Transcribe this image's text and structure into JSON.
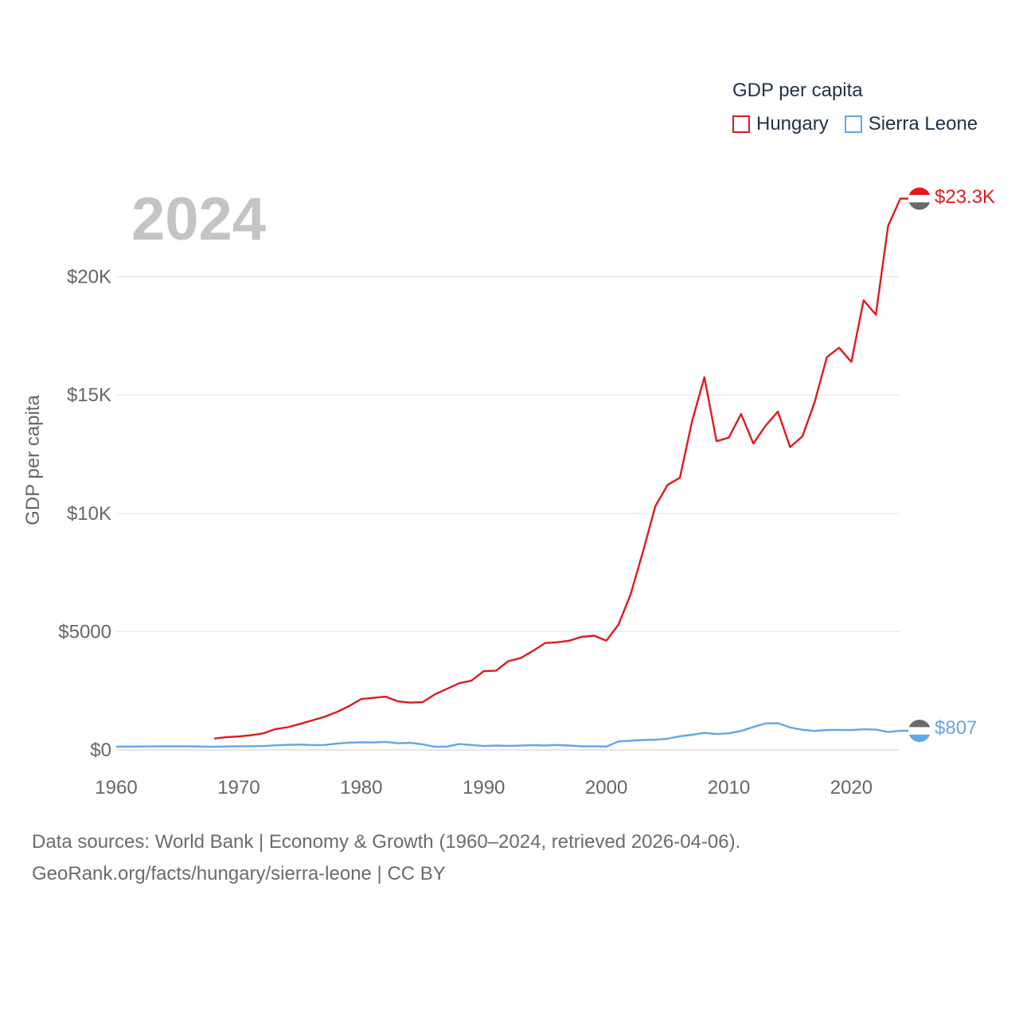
{
  "chart_data": {
    "type": "line",
    "title": "GDP per capita",
    "ylabel": "GDP per capita",
    "xlabel": "",
    "year_label": "2024",
    "x_ticks": [
      "1960",
      "1970",
      "1980",
      "1990",
      "2000",
      "2010",
      "2020"
    ],
    "y_ticks": [
      {
        "value": 0,
        "label": "$0"
      },
      {
        "value": 5000,
        "label": "$5000"
      },
      {
        "value": 10000,
        "label": "$10K"
      },
      {
        "value": 15000,
        "label": "$15K"
      },
      {
        "value": 20000,
        "label": "$20K"
      }
    ],
    "xlim": [
      1960,
      2024
    ],
    "ylim": [
      0,
      25000
    ],
    "series": [
      {
        "name": "Hungary",
        "color": "#e0191f",
        "end_label": "$23.3K",
        "x": [
          1968,
          1969,
          1970,
          1971,
          1972,
          1973,
          1974,
          1975,
          1976,
          1977,
          1978,
          1979,
          1980,
          1981,
          1982,
          1983,
          1984,
          1985,
          1986,
          1987,
          1988,
          1989,
          1990,
          1991,
          1992,
          1993,
          1994,
          1995,
          1996,
          1997,
          1998,
          1999,
          2000,
          2001,
          2002,
          2003,
          2004,
          2005,
          2006,
          2007,
          2008,
          2009,
          2010,
          2011,
          2012,
          2013,
          2014,
          2015,
          2016,
          2017,
          2018,
          2019,
          2020,
          2021,
          2022,
          2023,
          2024
        ],
        "values": [
          480,
          540,
          570,
          620,
          700,
          880,
          960,
          1100,
          1250,
          1400,
          1600,
          1850,
          2150,
          2200,
          2250,
          2050,
          2000,
          2020,
          2350,
          2580,
          2820,
          2930,
          3330,
          3350,
          3750,
          3880,
          4180,
          4520,
          4550,
          4620,
          4780,
          4830,
          4620,
          5300,
          6600,
          8400,
          10300,
          11200,
          11500,
          13900,
          15750,
          13050,
          13200,
          14200,
          12950,
          13700,
          14300,
          12800,
          13250,
          14700,
          16600,
          17000,
          16400,
          19000,
          18400,
          22150,
          23300
        ]
      },
      {
        "name": "Sierra Leone",
        "color": "#61a6e8",
        "end_label": "$807",
        "x": [
          1960,
          1961,
          1962,
          1963,
          1964,
          1965,
          1966,
          1967,
          1968,
          1969,
          1970,
          1971,
          1972,
          1973,
          1974,
          1975,
          1976,
          1977,
          1978,
          1979,
          1980,
          1981,
          1982,
          1983,
          1984,
          1985,
          1986,
          1987,
          1988,
          1989,
          1990,
          1991,
          1992,
          1993,
          1994,
          1995,
          1996,
          1997,
          1998,
          1999,
          2000,
          2001,
          2002,
          2003,
          2004,
          2005,
          2006,
          2007,
          2008,
          2009,
          2010,
          2011,
          2012,
          2013,
          2014,
          2015,
          2016,
          2017,
          2018,
          2019,
          2020,
          2021,
          2022,
          2023,
          2024
        ],
        "values": [
          140,
          142,
          145,
          148,
          150,
          152,
          148,
          140,
          132,
          145,
          155,
          155,
          162,
          195,
          215,
          225,
          205,
          210,
          265,
          310,
          320,
          315,
          340,
          280,
          300,
          235,
          135,
          140,
          250,
          210,
          165,
          185,
          170,
          185,
          200,
          190,
          210,
          185,
          150,
          150,
          140,
          360,
          390,
          420,
          430,
          470,
          580,
          640,
          720,
          670,
          700,
          800,
          970,
          1120,
          1130,
          950,
          850,
          800,
          845,
          845,
          840,
          870,
          860,
          760,
          807
        ]
      }
    ]
  },
  "legend": {
    "title": "GDP per capita",
    "items": [
      "Hungary",
      "Sierra Leone"
    ]
  },
  "footer": {
    "line1": "Data sources: World Bank | Economy & Growth (1960–2024, retrieved 2026-04-06).",
    "line2": "GeoRank.org/facts/hungary/sierra-leone | CC BY"
  }
}
